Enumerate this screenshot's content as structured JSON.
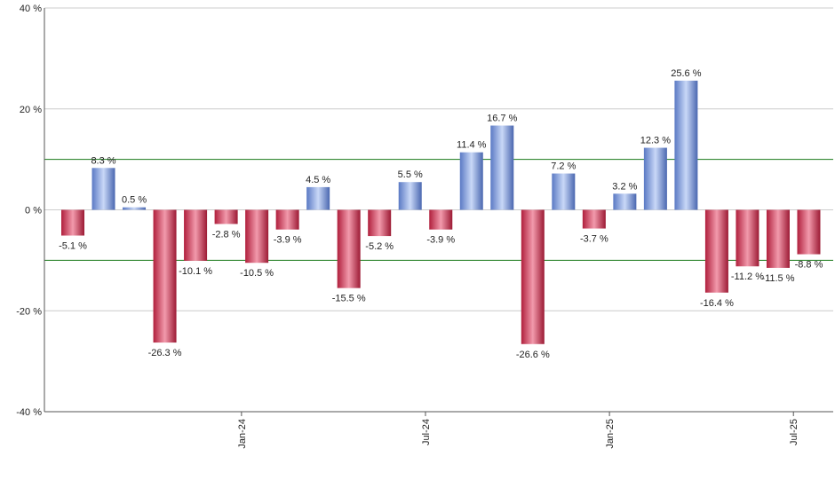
{
  "chart_data": {
    "type": "bar",
    "title": "",
    "xlabel": "",
    "ylabel": "",
    "ylim": [
      -40,
      40
    ],
    "y_ticks": [
      40,
      20,
      0,
      -20,
      -40
    ],
    "y_tick_labels": [
      "40 %",
      "20 %",
      "0 %",
      "-20 %",
      "-40 %"
    ],
    "reference_lines": [
      10,
      -10
    ],
    "grid": true,
    "values": [
      -5.1,
      8.3,
      0.5,
      -26.3,
      -10.1,
      -2.8,
      -10.5,
      -3.9,
      4.5,
      -15.5,
      -5.2,
      5.5,
      -3.9,
      11.4,
      16.7,
      -26.6,
      7.2,
      -3.7,
      3.2,
      12.3,
      25.6,
      -16.4,
      -11.2,
      -11.5,
      -8.8
    ],
    "value_labels": [
      "-5.1 %",
      "8.3 %",
      "0.5 %",
      "-26.3 %",
      "-10.1 %",
      "-2.8 %",
      "-10.5 %",
      "-3.9 %",
      "4.5 %",
      "-15.5 %",
      "-5.2 %",
      "5.5 %",
      "-3.9 %",
      "11.4 %",
      "16.7 %",
      "-26.6 %",
      "7.2 %",
      "-3.7 %",
      "3.2 %",
      "12.3 %",
      "25.6 %",
      "-16.4 %",
      "-11.2 %",
      "-11.5 %",
      "-8.8 %"
    ],
    "x_tick_labels": [
      {
        "label": "Jan-24",
        "index": 5
      },
      {
        "label": "Jul-24",
        "index": 11
      },
      {
        "label": "Jan-25",
        "index": 17
      },
      {
        "label": "Jul-25",
        "index": 23
      }
    ],
    "colors": {
      "positive": "#7b9fe0",
      "negative": "#d23a5a",
      "reference_line": "#1a7a1a",
      "grid": "#cccccc",
      "axis": "#555555"
    }
  }
}
